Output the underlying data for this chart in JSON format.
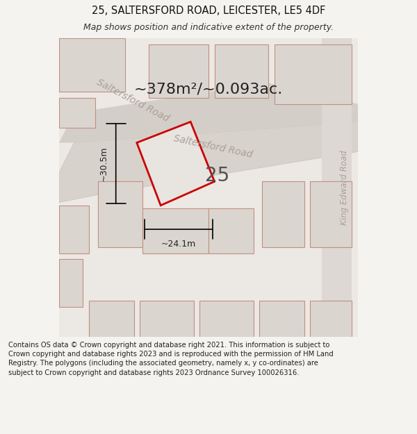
{
  "title_line1": "25, SALTERSFORD ROAD, LEICESTER, LE5 4DF",
  "title_line2": "Map shows position and indicative extent of the property.",
  "area_text": "~378m²/~0.093ac.",
  "number_label": "25",
  "width_label": "~24.1m",
  "height_label": "~30.5m",
  "road_label_1": "Saltersford Road",
  "road_label_2": "Saltersford Road",
  "road_label_right": "King Edward Road",
  "footer_text": "Contains OS data © Crown copyright and database right 2021. This information is subject to Crown copyright and database rights 2023 and is reproduced with the permission of HM Land Registry. The polygons (including the associated geometry, namely x, y co-ordinates) are subject to Crown copyright and database rights 2023 Ordnance Survey 100026316.",
  "background_color": "#f0eeec",
  "map_bg_color": "#e8e4e0",
  "plot_outline_color": "#cc0000",
  "road_color": "#d4c8c0",
  "building_fill": "#e0dbd6",
  "building_edge": "#c8a090",
  "white_road": "#f5f2f0",
  "fig_width": 6.0,
  "fig_height": 6.25
}
